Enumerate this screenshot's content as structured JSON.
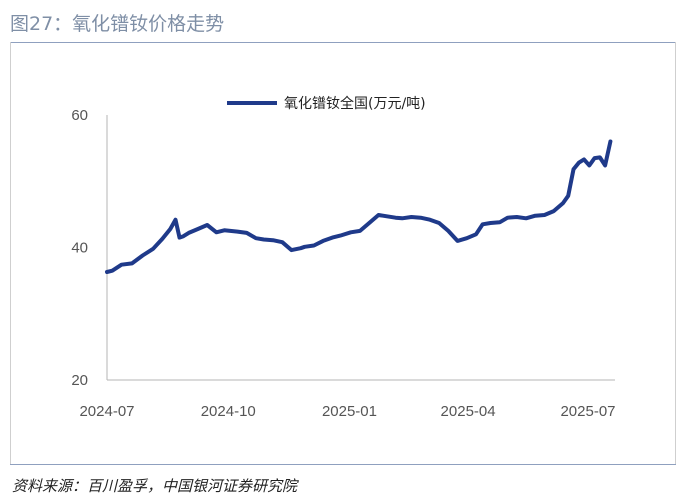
{
  "header": {
    "title": "图27：氧化镨钕价格走势"
  },
  "footer": {
    "source": "资料来源：百川盈孚，中国银河证券研究院"
  },
  "chart_data": {
    "type": "line",
    "title": "",
    "xlabel": "",
    "ylabel": "",
    "ylim": [
      20,
      60
    ],
    "yticks": [
      "20",
      "40",
      "60"
    ],
    "xticks": [
      "2024-07",
      "2024-10",
      "2025-01",
      "2025-04",
      "2025-07"
    ],
    "xrange": [
      "2024-07",
      "2025-07"
    ],
    "legend": "top-center",
    "grid": false,
    "colors": {
      "series": "#1f3a8a"
    },
    "series": [
      {
        "name": "氧化镨钕全国(万元/吨)",
        "x": [
          "2024-07-01",
          "2024-07-05",
          "2024-07-12",
          "2024-07-20",
          "2024-07-28",
          "2024-08-05",
          "2024-08-12",
          "2024-08-18",
          "2024-08-22",
          "2024-08-25",
          "2024-08-28",
          "2024-09-01",
          "2024-09-08",
          "2024-09-15",
          "2024-09-22",
          "2024-09-28",
          "2024-10-08",
          "2024-10-15",
          "2024-10-22",
          "2024-10-28",
          "2024-11-04",
          "2024-11-11",
          "2024-11-18",
          "2024-11-25",
          "2024-11-28",
          "2024-12-05",
          "2024-12-12",
          "2024-12-19",
          "2024-12-25",
          "2025-01-02",
          "2025-01-09",
          "2025-01-16",
          "2025-01-23",
          "2025-02-05",
          "2025-02-10",
          "2025-02-17",
          "2025-02-24",
          "2025-03-03",
          "2025-03-10",
          "2025-03-17",
          "2025-03-24",
          "2025-03-31",
          "2025-04-07",
          "2025-04-12",
          "2025-04-18",
          "2025-04-25",
          "2025-05-01",
          "2025-05-08",
          "2025-05-15",
          "2025-05-22",
          "2025-05-29",
          "2025-06-05",
          "2025-06-12",
          "2025-06-16",
          "2025-06-20",
          "2025-06-24",
          "2025-06-28",
          "2025-07-02",
          "2025-07-06",
          "2025-07-10",
          "2025-07-14",
          "2025-07-18"
        ],
        "values": [
          36.3,
          36.5,
          37.4,
          37.6,
          38.8,
          39.8,
          41.3,
          42.8,
          44.2,
          41.5,
          41.7,
          42.2,
          42.8,
          43.4,
          42.3,
          42.6,
          42.4,
          42.2,
          41.4,
          41.2,
          41.1,
          40.8,
          39.6,
          39.9,
          40.1,
          40.3,
          41.0,
          41.5,
          41.8,
          42.3,
          42.5,
          43.7,
          44.9,
          44.5,
          44.4,
          44.6,
          44.5,
          44.2,
          43.7,
          42.5,
          41.0,
          41.4,
          42.0,
          43.5,
          43.7,
          43.8,
          44.5,
          44.6,
          44.4,
          44.8,
          44.9,
          45.5,
          46.7,
          47.8,
          51.8,
          52.8,
          53.3,
          52.4,
          53.5,
          53.6,
          52.4,
          56.0
        ]
      }
    ]
  }
}
